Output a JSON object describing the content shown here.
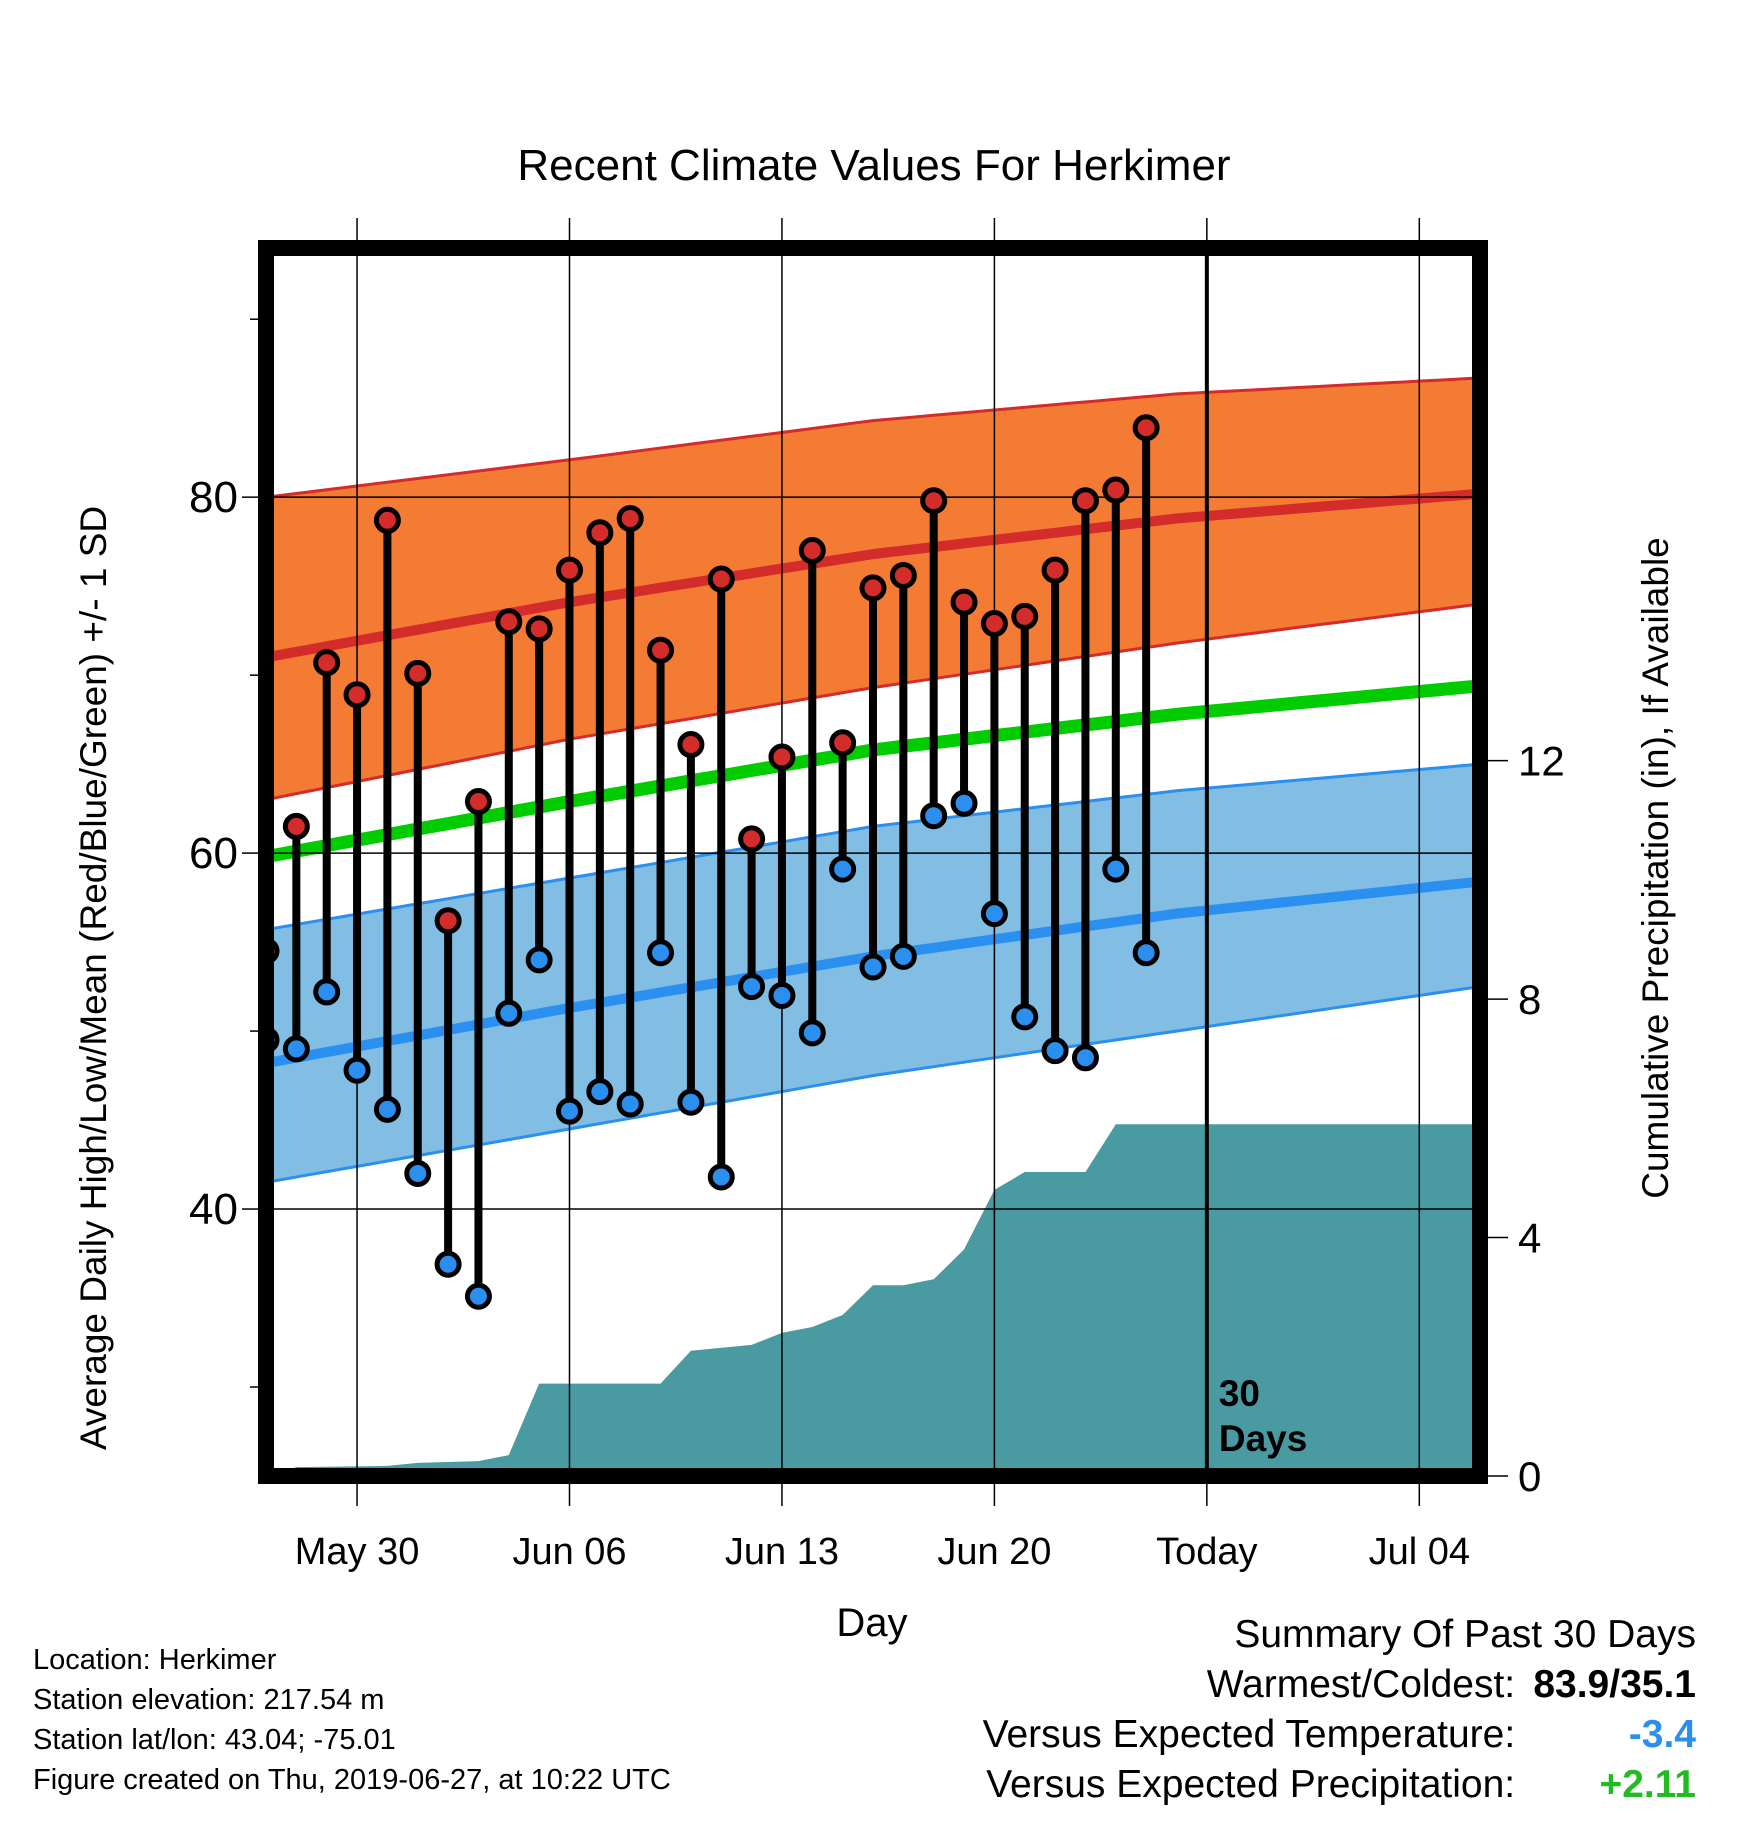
{
  "chart_data": {
    "type": "line",
    "title": "Recent Climate Values For Herkimer",
    "xlabel": "Day",
    "ylabel_left": "Average Daily High/Low/Mean (Red/Blue/Green) +/- 1 SD",
    "ylabel_right": "Cumulative Precipitation (in), If Available",
    "x_ticks": [
      "May 30",
      "Jun 06",
      "Jun 13",
      "Jun 20",
      "Today",
      "Jul 04"
    ],
    "x_range": [
      "2019-05-27",
      "2019-07-06"
    ],
    "ylim_left": [
      25,
      94
    ],
    "yticks_left": [
      40,
      60,
      80
    ],
    "ylim_right": [
      0,
      20.6
    ],
    "yticks_right": [
      0,
      4,
      8,
      12
    ],
    "grid": true,
    "today": "2019-06-27",
    "today_annotation": [
      "30",
      "Days"
    ],
    "daily_observations": {
      "dates": [
        "2019-05-27",
        "2019-05-28",
        "2019-05-29",
        "2019-05-30",
        "2019-05-31",
        "2019-06-01",
        "2019-06-02",
        "2019-06-03",
        "2019-06-04",
        "2019-06-05",
        "2019-06-06",
        "2019-06-07",
        "2019-06-08",
        "2019-06-09",
        "2019-06-10",
        "2019-06-11",
        "2019-06-12",
        "2019-06-13",
        "2019-06-14",
        "2019-06-15",
        "2019-06-16",
        "2019-06-17",
        "2019-06-18",
        "2019-06-19",
        "2019-06-20",
        "2019-06-21",
        "2019-06-22",
        "2019-06-23",
        "2019-06-24",
        "2019-06-25",
        "2019-06-26"
      ],
      "high": [
        54.5,
        61.5,
        70.7,
        68.9,
        78.7,
        70.1,
        56.2,
        62.9,
        73.0,
        72.6,
        75.9,
        78.0,
        78.8,
        71.4,
        66.1,
        75.4,
        60.8,
        65.4,
        77.0,
        66.2,
        74.9,
        75.6,
        79.8,
        74.1,
        72.9,
        73.3,
        75.9,
        79.8,
        80.4,
        83.9,
        null
      ],
      "low": [
        49.5,
        49.0,
        52.2,
        47.8,
        45.6,
        42.0,
        36.9,
        35.1,
        51.0,
        54.0,
        45.5,
        46.6,
        45.9,
        54.4,
        46.0,
        41.8,
        52.5,
        52.0,
        49.9,
        59.1,
        53.6,
        54.2,
        62.1,
        62.8,
        56.6,
        50.8,
        48.9,
        48.5,
        59.1,
        54.4,
        null
      ]
    },
    "normals": {
      "dates": [
        "2019-05-27",
        "2019-06-06",
        "2019-06-16",
        "2019-06-26",
        "2019-07-06"
      ],
      "high_mean": [
        71.0,
        74.1,
        76.8,
        78.8,
        80.2
      ],
      "high_upper": [
        80.0,
        82.1,
        84.3,
        85.8,
        86.7
      ],
      "high_lower": [
        63.0,
        66.4,
        69.3,
        71.8,
        74.0
      ],
      "low_mean": [
        48.2,
        51.3,
        54.2,
        56.6,
        58.4
      ],
      "low_upper": [
        55.7,
        58.6,
        61.5,
        63.5,
        65.0
      ],
      "low_lower": [
        41.5,
        44.5,
        47.5,
        50.0,
        52.5
      ],
      "mean": [
        59.8,
        62.9,
        65.8,
        67.8,
        69.4
      ]
    },
    "cumulative_precipitation": {
      "dates": [
        "2019-05-27",
        "2019-05-28",
        "2019-05-31",
        "2019-06-01",
        "2019-06-03",
        "2019-06-04",
        "2019-06-05",
        "2019-06-09",
        "2019-06-10",
        "2019-06-12",
        "2019-06-13",
        "2019-06-14",
        "2019-06-15",
        "2019-06-16",
        "2019-06-17",
        "2019-06-18",
        "2019-06-19",
        "2019-06-20",
        "2019-06-21",
        "2019-06-22",
        "2019-06-23",
        "2019-06-24",
        "2019-06-25",
        "2019-07-06"
      ],
      "values": [
        0.0,
        0.15,
        0.17,
        0.22,
        0.25,
        0.35,
        1.55,
        1.55,
        2.1,
        2.2,
        2.4,
        2.5,
        2.7,
        3.2,
        3.2,
        3.3,
        3.8,
        4.8,
        5.1,
        5.1,
        5.1,
        5.9,
        5.9,
        5.9
      ]
    },
    "colors": {
      "high_band": "#f47b34",
      "high_mean": "#d42b2b",
      "low_band": "#82bde3",
      "low_mean": "#2b8ff0",
      "mean": "#00cc00",
      "precip": "#4a9aa2",
      "high_marker": "#d42b2b",
      "low_marker": "#2b8ff0"
    }
  },
  "info": {
    "location": "Location: Herkimer",
    "elevation": "Station elevation: 217.54 m",
    "latlon": "Station lat/lon: 43.04; -75.01",
    "created": "Figure created on Thu, 2019-06-27, at 10:22 UTC"
  },
  "summary": {
    "heading": "Summary Of Past 30 Days",
    "warmest_label": "Warmest/Coldest:",
    "warmest_value": "83.9/35.1",
    "temp_label": "Versus Expected Temperature:",
    "temp_value": "-3.4",
    "temp_color": "#2b8ff0",
    "precip_label": "Versus Expected Precipitation:",
    "precip_value": "+2.11",
    "precip_color": "#22bb22"
  }
}
